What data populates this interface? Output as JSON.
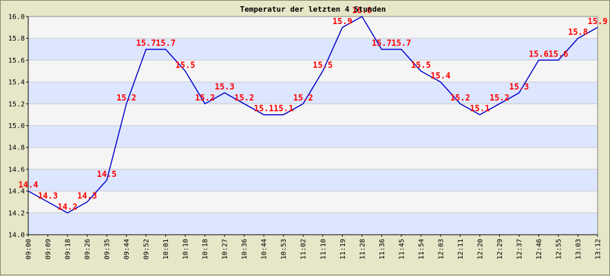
{
  "chart_data": {
    "type": "line",
    "title": "Temperatur der letzten 4 Stunden",
    "xlabel": "",
    "ylabel": "",
    "ylim": [
      14.0,
      16.0
    ],
    "yticks": [
      "14.0",
      "14.2",
      "14.4",
      "14.6",
      "14.8",
      "15.0",
      "15.2",
      "15.4",
      "15.6",
      "15.8",
      "16.0"
    ],
    "grid": "horizontal alternating bands",
    "categories": [
      "09:00",
      "09:09",
      "09:18",
      "09:26",
      "09:35",
      "09:44",
      "09:52",
      "10:01",
      "10:10",
      "10:18",
      "10:27",
      "10:36",
      "10:44",
      "10:53",
      "11:02",
      "11:10",
      "11:19",
      "11:28",
      "11:36",
      "11:45",
      "11:54",
      "12:03",
      "12:11",
      "12:20",
      "12:29",
      "12:37",
      "12:46",
      "12:55",
      "13:03",
      "13:12"
    ],
    "values": [
      14.4,
      14.3,
      14.2,
      14.3,
      14.5,
      15.2,
      15.7,
      15.7,
      15.5,
      15.2,
      15.3,
      15.2,
      15.1,
      15.1,
      15.2,
      15.5,
      15.9,
      16.0,
      15.7,
      15.7,
      15.5,
      15.4,
      15.2,
      15.1,
      15.2,
      15.3,
      15.6,
      15.6,
      15.8,
      15.9
    ],
    "data_labels": [
      "14.4",
      "14.3",
      "14.2",
      "14.3",
      "14.5",
      "15.2",
      "15.7",
      "15.7",
      "15.5",
      "15.2",
      "15.3",
      "15.2",
      "15.1",
      "15.1",
      "15.2",
      "15.5",
      "15.9",
      "16.0",
      "15.7",
      "15.7",
      "15.5",
      "15.4",
      "15.2",
      "15.1",
      "15.2",
      "15.3",
      "15.6",
      "15.6",
      "15.8",
      "15.9"
    ],
    "colors": {
      "line": "#0000cc",
      "labels": "#ff0000",
      "band_a": "#dde6ff",
      "band_b": "#f5f5f5",
      "background": "#e6e6c8"
    }
  }
}
